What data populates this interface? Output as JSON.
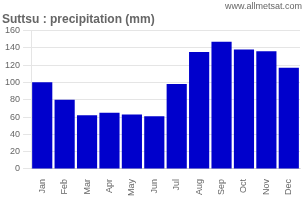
{
  "chart_data": {
    "type": "bar",
    "title": "Suttsu : precipitation (mm)",
    "categories": [
      "Jan",
      "Feb",
      "Mar",
      "Apr",
      "May",
      "Jun",
      "Jul",
      "Aug",
      "Sep",
      "Oct",
      "Nov",
      "Dec"
    ],
    "values": [
      100,
      80,
      62,
      65,
      63,
      61,
      98,
      135,
      147,
      138,
      136,
      117
    ],
    "color": "#0000cc",
    "ylim": [
      0,
      160
    ],
    "yticks": [
      0,
      20,
      40,
      60,
      80,
      100,
      120,
      140,
      160
    ],
    "grid": true,
    "annotations": [
      "www.allmetsat.com"
    ]
  }
}
